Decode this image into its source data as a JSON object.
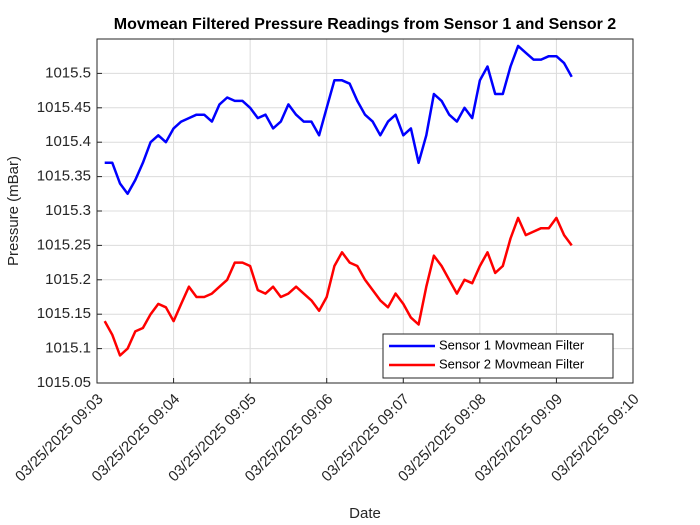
{
  "chart_data": {
    "type": "line",
    "title": "Movmean Filtered Pressure Readings from Sensor 1 and Sensor 2",
    "xlabel": "Date",
    "ylabel": "Pressure (mBar)",
    "x": [
      0.1,
      0.2,
      0.3,
      0.4,
      0.5,
      0.6,
      0.7,
      0.8,
      0.9,
      1.0,
      1.1,
      1.2,
      1.3,
      1.4,
      1.5,
      1.6,
      1.7,
      1.8,
      1.9,
      2.0,
      2.1,
      2.2,
      2.3,
      2.4,
      2.5,
      2.6,
      2.7,
      2.8,
      2.9,
      3.0,
      3.1,
      3.2,
      3.3,
      3.4,
      3.5,
      3.6,
      3.7,
      3.8,
      3.9,
      4.0,
      4.1,
      4.2,
      4.3,
      4.4,
      4.5,
      4.6,
      4.7,
      4.8,
      4.9,
      5.0,
      5.1,
      5.2,
      5.3,
      5.4,
      5.5,
      5.6,
      5.7,
      5.8,
      5.9,
      6.0,
      6.1,
      6.2
    ],
    "series": [
      {
        "name": "Sensor 1 Movmean Filter",
        "color": "#0000ff",
        "values": [
          1015.37,
          1015.37,
          1015.34,
          1015.325,
          1015.345,
          1015.37,
          1015.4,
          1015.41,
          1015.4,
          1015.42,
          1015.43,
          1015.435,
          1015.44,
          1015.44,
          1015.43,
          1015.455,
          1015.465,
          1015.46,
          1015.46,
          1015.45,
          1015.435,
          1015.44,
          1015.42,
          1015.43,
          1015.455,
          1015.44,
          1015.43,
          1015.43,
          1015.41,
          1015.45,
          1015.49,
          1015.49,
          1015.485,
          1015.46,
          1015.44,
          1015.43,
          1015.41,
          1015.43,
          1015.44,
          1015.41,
          1015.42,
          1015.37,
          1015.41,
          1015.47,
          1015.46,
          1015.44,
          1015.43,
          1015.45,
          1015.435,
          1015.49,
          1015.51,
          1015.47,
          1015.47,
          1015.51,
          1015.54,
          1015.53,
          1015.52,
          1015.52,
          1015.525,
          1015.525,
          1015.515,
          1015.495
        ]
      },
      {
        "name": "Sensor 2 Movmean Filter",
        "color": "#ff0000",
        "values": [
          1015.14,
          1015.12,
          1015.09,
          1015.1,
          1015.125,
          1015.13,
          1015.15,
          1015.165,
          1015.16,
          1015.14,
          1015.165,
          1015.19,
          1015.175,
          1015.175,
          1015.18,
          1015.19,
          1015.2,
          1015.225,
          1015.225,
          1015.22,
          1015.185,
          1015.18,
          1015.19,
          1015.175,
          1015.18,
          1015.19,
          1015.18,
          1015.17,
          1015.155,
          1015.175,
          1015.22,
          1015.24,
          1015.225,
          1015.22,
          1015.2,
          1015.185,
          1015.17,
          1015.16,
          1015.18,
          1015.165,
          1015.145,
          1015.135,
          1015.19,
          1015.235,
          1015.22,
          1015.2,
          1015.18,
          1015.2,
          1015.195,
          1015.22,
          1015.24,
          1015.21,
          1015.22,
          1015.26,
          1015.29,
          1015.265,
          1015.27,
          1015.275,
          1015.275,
          1015.29,
          1015.265,
          1015.25
        ]
      }
    ],
    "xlim": [
      0,
      7
    ],
    "xticks": [
      {
        "value": 0,
        "label": "03/25/2025 09:03"
      },
      {
        "value": 1,
        "label": "03/25/2025 09:04"
      },
      {
        "value": 2,
        "label": "03/25/2025 09:05"
      },
      {
        "value": 3,
        "label": "03/25/2025 09:06"
      },
      {
        "value": 4,
        "label": "03/25/2025 09:07"
      },
      {
        "value": 5,
        "label": "03/25/2025 09:08"
      },
      {
        "value": 6,
        "label": "03/25/2025 09:09"
      },
      {
        "value": 7,
        "label": "03/25/2025 09:10"
      }
    ],
    "ylim": [
      1015.05,
      1015.55
    ],
    "yticks": [
      1015.05,
      1015.1,
      1015.15,
      1015.2,
      1015.25,
      1015.3,
      1015.35,
      1015.4,
      1015.45,
      1015.5
    ],
    "grid": true,
    "legend": "lower right"
  }
}
